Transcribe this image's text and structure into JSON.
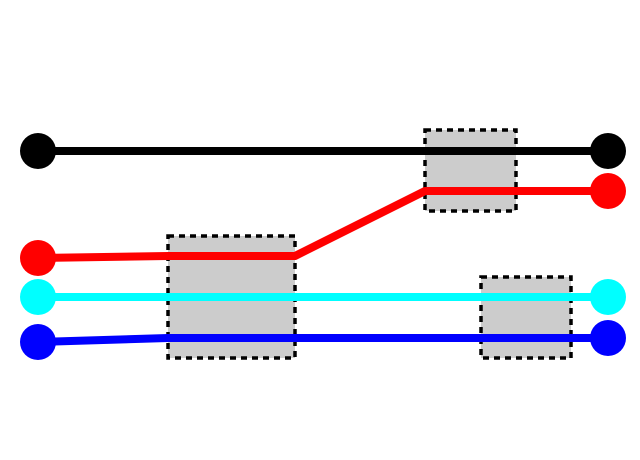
{
  "diagram": {
    "background": "#ffffff",
    "box_fill": "#cccccc",
    "box_border": "#000000",
    "wires": [
      {
        "name": "black",
        "color": "#000000"
      },
      {
        "name": "red",
        "color": "#ff0000"
      },
      {
        "name": "cyan",
        "color": "#00ffff"
      },
      {
        "name": "blue",
        "color": "#0000ff"
      }
    ],
    "gate_count": 3
  }
}
